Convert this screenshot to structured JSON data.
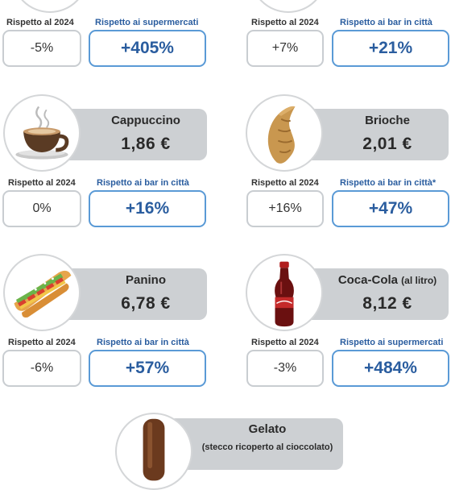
{
  "row0": {
    "left": {
      "label_year": "Rispetto al 2024",
      "label_compare": "Rispetto ai supermercati",
      "delta_year": "-5%",
      "delta_compare": "+405%"
    },
    "right": {
      "label_year": "Rispetto al 2024",
      "label_compare": "Rispetto ai bar in città",
      "delta_year": "+7%",
      "delta_compare": "+21%"
    }
  },
  "products": [
    {
      "name": "Cappuccino",
      "name_extra": "",
      "price": "1,86 €",
      "label_year": "Rispetto al 2024",
      "label_compare": "Rispetto ai bar in città",
      "delta_year": "0%",
      "delta_compare": "+16%",
      "icon": "cappuccino-cup-icon"
    },
    {
      "name": "Brioche",
      "name_extra": "",
      "price": "2,01 €",
      "label_year": "Rispetto al 2024",
      "label_compare": "Rispetto ai bar in città*",
      "delta_year": "+16%",
      "delta_compare": "+47%",
      "icon": "croissant-icon"
    },
    {
      "name": "Panino",
      "name_extra": "",
      "price": "6,78 €",
      "label_year": "Rispetto al 2024",
      "label_compare": "Rispetto ai bar in città",
      "delta_year": "-6%",
      "delta_compare": "+57%",
      "icon": "sandwich-icon"
    },
    {
      "name": "Coca-Cola",
      "name_extra": "(al litro)",
      "price": "8,12 €",
      "label_year": "Rispetto al 2024",
      "label_compare": "Rispetto ai supermercati",
      "delta_year": "-3%",
      "delta_compare": "+484%",
      "icon": "cola-bottle-icon"
    }
  ],
  "gelato": {
    "name": "Gelato",
    "subtitle": "(stecco ricoperto al cioccolato)",
    "icon": "ice-cream-stick-icon"
  },
  "colors": {
    "accent_blue": "#2a5d9f",
    "border_blue": "#5a9ad6",
    "panel_gray": "#cdd0d3"
  }
}
